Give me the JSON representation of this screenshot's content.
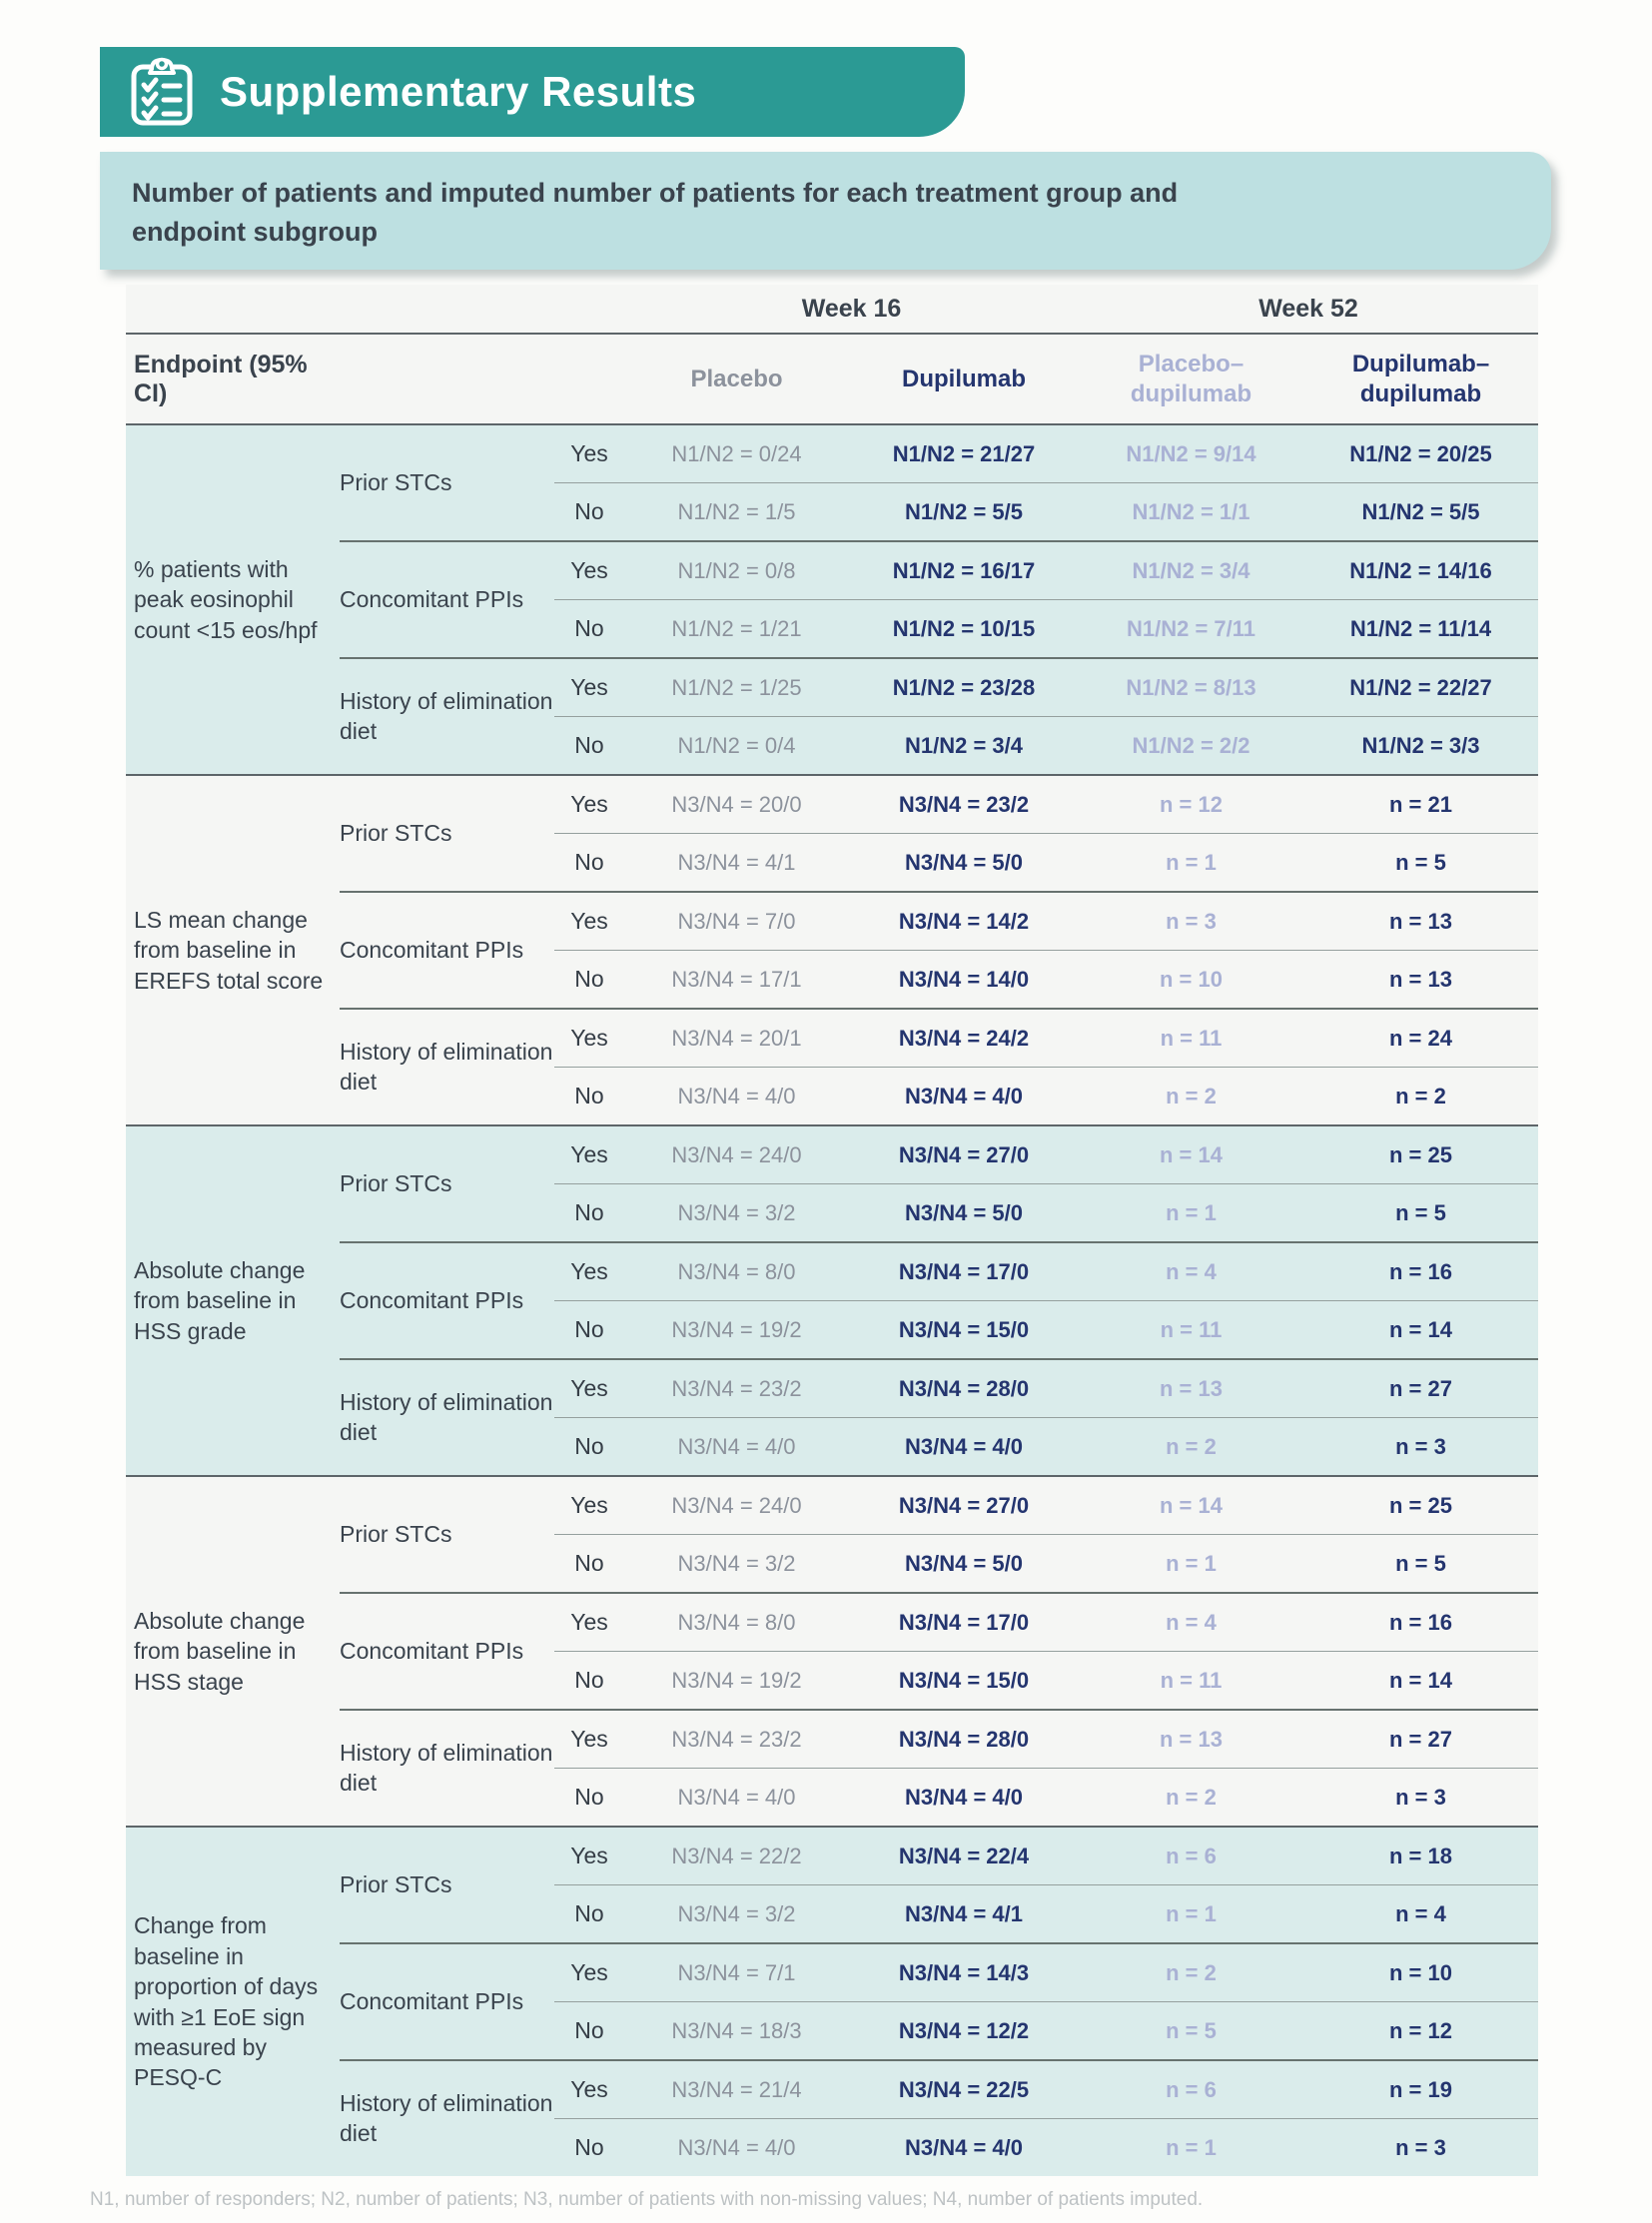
{
  "header": {
    "title": "Supplementary Results",
    "icon": "clipboard-checklist-icon"
  },
  "subtitle": "Number of patients and imputed number of patients for each treatment group and endpoint subgroup",
  "table": {
    "week_groups": [
      "Week 16",
      "Week 52"
    ],
    "endpoint_header": "Endpoint (95% CI)",
    "columns": [
      "Placebo",
      "Dupilumab",
      "Placebo–dupilumab",
      "Dupilumab–dupilumab"
    ],
    "sections": [
      {
        "endpoint": "% patients with peak eosinophil count <15 eos/hpf",
        "groups": [
          {
            "label": "Prior STCs",
            "rows": [
              {
                "answer": "Yes",
                "values": [
                  "N1/N2 = 0/24",
                  "N1/N2 = 21/27",
                  "N1/N2 = 9/14",
                  "N1/N2 = 20/25"
                ]
              },
              {
                "answer": "No",
                "values": [
                  "N1/N2 = 1/5",
                  "N1/N2 = 5/5",
                  "N1/N2 = 1/1",
                  "N1/N2 = 5/5"
                ]
              }
            ]
          },
          {
            "label": "Concomitant PPIs",
            "rows": [
              {
                "answer": "Yes",
                "values": [
                  "N1/N2 = 0/8",
                  "N1/N2 = 16/17",
                  "N1/N2 = 3/4",
                  "N1/N2 = 14/16"
                ]
              },
              {
                "answer": "No",
                "values": [
                  "N1/N2 = 1/21",
                  "N1/N2 = 10/15",
                  "N1/N2 = 7/11",
                  "N1/N2 = 11/14"
                ]
              }
            ]
          },
          {
            "label": "History of elimination diet",
            "rows": [
              {
                "answer": "Yes",
                "values": [
                  "N1/N2 = 1/25",
                  "N1/N2 = 23/28",
                  "N1/N2 = 8/13",
                  "N1/N2 = 22/27"
                ]
              },
              {
                "answer": "No",
                "values": [
                  "N1/N2 = 0/4",
                  "N1/N2 = 3/4",
                  "N1/N2 = 2/2",
                  "N1/N2 = 3/3"
                ]
              }
            ]
          }
        ]
      },
      {
        "endpoint": "LS mean change from baseline in EREFS total score",
        "groups": [
          {
            "label": "Prior STCs",
            "rows": [
              {
                "answer": "Yes",
                "values": [
                  "N3/N4 = 20/0",
                  "N3/N4 = 23/2",
                  "n = 12",
                  "n = 21"
                ]
              },
              {
                "answer": "No",
                "values": [
                  "N3/N4 = 4/1",
                  "N3/N4 = 5/0",
                  "n = 1",
                  "n = 5"
                ]
              }
            ]
          },
          {
            "label": "Concomitant PPIs",
            "rows": [
              {
                "answer": "Yes",
                "values": [
                  "N3/N4 = 7/0",
                  "N3/N4 = 14/2",
                  "n = 3",
                  "n = 13"
                ]
              },
              {
                "answer": "No",
                "values": [
                  "N3/N4 = 17/1",
                  "N3/N4 = 14/0",
                  "n = 10",
                  "n = 13"
                ]
              }
            ]
          },
          {
            "label": "History of elimination diet",
            "rows": [
              {
                "answer": "Yes",
                "values": [
                  "N3/N4 = 20/1",
                  "N3/N4 = 24/2",
                  "n = 11",
                  "n = 24"
                ]
              },
              {
                "answer": "No",
                "values": [
                  "N3/N4 = 4/0",
                  "N3/N4 = 4/0",
                  "n = 2",
                  "n = 2"
                ]
              }
            ]
          }
        ]
      },
      {
        "endpoint": "Absolute change from baseline in HSS grade",
        "groups": [
          {
            "label": "Prior STCs",
            "rows": [
              {
                "answer": "Yes",
                "values": [
                  "N3/N4 = 24/0",
                  "N3/N4 = 27/0",
                  "n = 14",
                  "n = 25"
                ]
              },
              {
                "answer": "No",
                "values": [
                  "N3/N4 = 3/2",
                  "N3/N4 = 5/0",
                  "n = 1",
                  "n = 5"
                ]
              }
            ]
          },
          {
            "label": "Concomitant PPIs",
            "rows": [
              {
                "answer": "Yes",
                "values": [
                  "N3/N4 = 8/0",
                  "N3/N4 = 17/0",
                  "n = 4",
                  "n = 16"
                ]
              },
              {
                "answer": "No",
                "values": [
                  "N3/N4 = 19/2",
                  "N3/N4 = 15/0",
                  "n = 11",
                  "n = 14"
                ]
              }
            ]
          },
          {
            "label": "History of elimination diet",
            "rows": [
              {
                "answer": "Yes",
                "values": [
                  "N3/N4 = 23/2",
                  "N3/N4 = 28/0",
                  "n = 13",
                  "n = 27"
                ]
              },
              {
                "answer": "No",
                "values": [
                  "N3/N4 = 4/0",
                  "N3/N4 = 4/0",
                  "n = 2",
                  "n = 3"
                ]
              }
            ]
          }
        ]
      },
      {
        "endpoint": "Absolute change from baseline in HSS stage",
        "groups": [
          {
            "label": "Prior STCs",
            "rows": [
              {
                "answer": "Yes",
                "values": [
                  "N3/N4 = 24/0",
                  "N3/N4 = 27/0",
                  "n = 14",
                  "n = 25"
                ]
              },
              {
                "answer": "No",
                "values": [
                  "N3/N4 = 3/2",
                  "N3/N4 = 5/0",
                  "n = 1",
                  "n = 5"
                ]
              }
            ]
          },
          {
            "label": "Concomitant PPIs",
            "rows": [
              {
                "answer": "Yes",
                "values": [
                  "N3/N4 = 8/0",
                  "N3/N4 = 17/0",
                  "n = 4",
                  "n = 16"
                ]
              },
              {
                "answer": "No",
                "values": [
                  "N3/N4 = 19/2",
                  "N3/N4 = 15/0",
                  "n = 11",
                  "n = 14"
                ]
              }
            ]
          },
          {
            "label": "History of elimination diet",
            "rows": [
              {
                "answer": "Yes",
                "values": [
                  "N3/N4 = 23/2",
                  "N3/N4 = 28/0",
                  "n = 13",
                  "n = 27"
                ]
              },
              {
                "answer": "No",
                "values": [
                  "N3/N4 = 4/0",
                  "N3/N4 = 4/0",
                  "n = 2",
                  "n = 3"
                ]
              }
            ]
          }
        ]
      },
      {
        "endpoint": "Change from baseline in proportion of days with ≥1 EoE sign measured by PESQ-C",
        "groups": [
          {
            "label": "Prior STCs",
            "rows": [
              {
                "answer": "Yes",
                "values": [
                  "N3/N4 = 22/2",
                  "N3/N4 = 22/4",
                  "n = 6",
                  "n = 18"
                ]
              },
              {
                "answer": "No",
                "values": [
                  "N3/N4 = 3/2",
                  "N3/N4 = 4/1",
                  "n = 1",
                  "n = 4"
                ]
              }
            ]
          },
          {
            "label": "Concomitant PPIs",
            "rows": [
              {
                "answer": "Yes",
                "values": [
                  "N3/N4 = 7/1",
                  "N3/N4 = 14/3",
                  "n = 2",
                  "n = 10"
                ]
              },
              {
                "answer": "No",
                "values": [
                  "N3/N4 = 18/3",
                  "N3/N4 = 12/2",
                  "n = 5",
                  "n = 12"
                ]
              }
            ]
          },
          {
            "label": "History of elimination diet",
            "rows": [
              {
                "answer": "Yes",
                "values": [
                  "N3/N4 = 21/4",
                  "N3/N4 = 22/5",
                  "n = 6",
                  "n = 19"
                ]
              },
              {
                "answer": "No",
                "values": [
                  "N3/N4 = 4/0",
                  "N3/N4 = 4/0",
                  "n = 1",
                  "n = 3"
                ]
              }
            ]
          }
        ]
      }
    ]
  },
  "footnote": "N1, number of responders; N2, number of patients; N3, number of patients with non-missing values; N4, number of patients imputed.",
  "colors": {
    "teal": "#2b9a94",
    "captionBg": "#bde0e1",
    "sectionTeal": "#daeceb",
    "dark": "#3a434d",
    "navy": "#24356f",
    "periwinkle": "#a9b1d4",
    "grayVal": "#8c929c"
  }
}
